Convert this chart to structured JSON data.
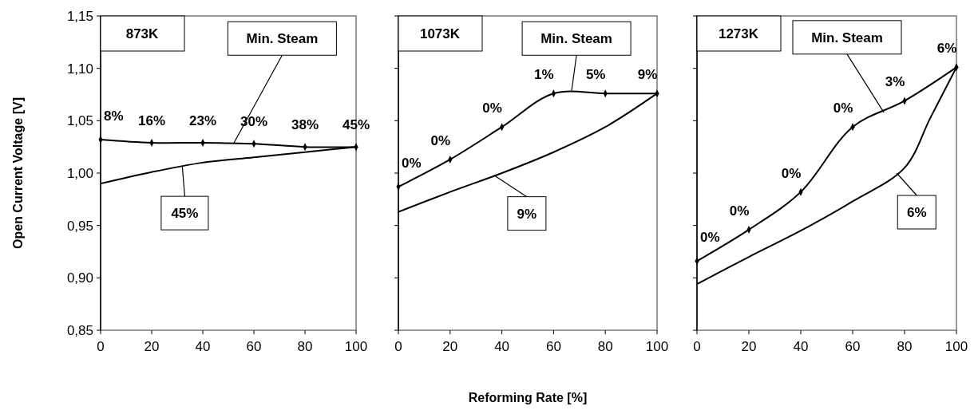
{
  "chart_data": [
    {
      "type": "line",
      "title": "873K",
      "ylabel": "Open Current Voltage [V]",
      "x": [
        0,
        20,
        40,
        60,
        80,
        100
      ],
      "xlim": [
        0,
        100
      ],
      "xticks": [
        0,
        20,
        40,
        60,
        80,
        100
      ],
      "ylim": [
        0.85,
        1.15
      ],
      "yticks": [
        {
          "value": 0.85,
          "label": "0,85"
        },
        {
          "value": 0.9,
          "label": "0,90"
        },
        {
          "value": 0.95,
          "label": "0,95"
        },
        {
          "value": 1.0,
          "label": "1,00"
        },
        {
          "value": 1.05,
          "label": "1,05"
        },
        {
          "value": 1.1,
          "label": "1,10"
        },
        {
          "value": 1.15,
          "label": "1,15"
        }
      ],
      "grid": false,
      "series": [
        {
          "color": "#000000",
          "marker": "diamond",
          "values": [
            1.032,
            1.029,
            1.029,
            1.028,
            1.025,
            1.025
          ]
        },
        {
          "color": "#000000",
          "marker": "none",
          "values": [
            0.99,
            1.001,
            1.01,
            1.015,
            1.02,
            1.025
          ]
        }
      ],
      "annotations": [
        {
          "text": "Min. Steam",
          "x": 52,
          "y": 1.028
        },
        {
          "text": "45%",
          "x": 32,
          "y": 1.006
        },
        {
          "text": "8%",
          "x": 0,
          "y": 1.032
        },
        {
          "text": "16%",
          "x": 20,
          "y": 1.029
        },
        {
          "text": "23%",
          "x": 40,
          "y": 1.029
        },
        {
          "text": "30%",
          "x": 60,
          "y": 1.028
        },
        {
          "text": "38%",
          "x": 80,
          "y": 1.025
        },
        {
          "text": "45%",
          "x": 100,
          "y": 1.025
        }
      ]
    },
    {
      "type": "line",
      "title": "1073K",
      "xlabel": "Reforming Rate [%]",
      "x": [
        0,
        20,
        40,
        60,
        80,
        100
      ],
      "xlim": [
        0,
        100
      ],
      "xticks": [
        0,
        20,
        40,
        60,
        80,
        100
      ],
      "ylim": [
        0.85,
        1.15
      ],
      "yticks": [
        0.85,
        0.9,
        0.95,
        1.0,
        1.05,
        1.1,
        1.15
      ],
      "tick_labels": "x",
      "grid": false,
      "series": [
        {
          "color": "#000000",
          "marker": "diamond",
          "values": [
            0.987,
            1.013,
            1.044,
            1.076,
            1.076,
            1.076
          ]
        },
        {
          "color": "#000000",
          "marker": "none",
          "values": [
            0.963,
            0.982,
            1.0,
            1.02,
            1.044,
            1.076
          ]
        }
      ],
      "annotations": [
        {
          "text": "Min. Steam",
          "x": 67,
          "y": 1.079
        },
        {
          "text": "9%",
          "x": 37,
          "y": 0.998
        },
        {
          "text": "0%",
          "x": 0,
          "y": 0.987
        },
        {
          "text": "0%",
          "x": 20,
          "y": 1.013
        },
        {
          "text": "0%",
          "x": 40,
          "y": 1.044
        },
        {
          "text": "1%",
          "x": 60,
          "y": 1.076
        },
        {
          "text": "5%",
          "x": 80,
          "y": 1.076
        },
        {
          "text": "9%",
          "x": 100,
          "y": 1.076
        }
      ]
    },
    {
      "type": "line",
      "title": "1273K",
      "x": [
        0,
        20,
        40,
        60,
        80,
        100
      ],
      "xlim": [
        0,
        100
      ],
      "xticks": [
        0,
        20,
        40,
        60,
        80,
        100
      ],
      "ylim": [
        0.85,
        1.15
      ],
      "yticks": [
        0.85,
        0.9,
        0.95,
        1.0,
        1.05,
        1.1,
        1.15
      ],
      "tick_labels": "x",
      "grid": false,
      "series": [
        {
          "color": "#000000",
          "marker": "diamond",
          "values": [
            0.916,
            0.946,
            0.982,
            1.044,
            1.069,
            1.101
          ]
        },
        {
          "color": "#000000",
          "marker": "none",
          "x": [
            0,
            20,
            40,
            60,
            80,
            90,
            100
          ],
          "values": [
            0.894,
            0.92,
            0.945,
            0.973,
            1.005,
            1.053,
            1.101
          ]
        }
      ],
      "annotations": [
        {
          "text": "Min. Steam",
          "x": 72,
          "y": 1.058
        },
        {
          "text": "6%",
          "x": 77,
          "y": 1.0
        },
        {
          "text": "0%",
          "x": 0,
          "y": 0.916
        },
        {
          "text": "0%",
          "x": 20,
          "y": 0.946
        },
        {
          "text": "0%",
          "x": 40,
          "y": 0.982
        },
        {
          "text": "0%",
          "x": 60,
          "y": 1.044
        },
        {
          "text": "3%",
          "x": 80,
          "y": 1.069
        },
        {
          "text": "6%",
          "x": 100,
          "y": 1.101
        }
      ]
    }
  ]
}
